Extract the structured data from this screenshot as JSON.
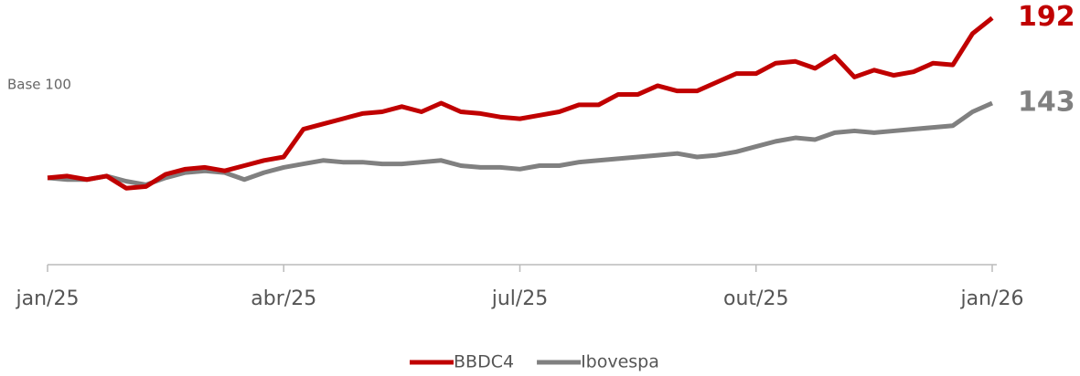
{
  "chart_data": {
    "type": "line",
    "ylabel": "Base 100",
    "x": [
      0,
      0.25,
      0.5,
      0.75,
      1,
      1.25,
      1.5,
      1.75,
      2,
      2.25,
      2.5,
      2.75,
      3,
      3.25,
      3.5,
      3.75,
      4,
      4.25,
      4.5,
      4.75,
      5,
      5.25,
      5.5,
      5.75,
      6,
      6.25,
      6.5,
      6.75,
      7,
      7.25,
      7.5,
      7.75,
      8,
      8.25,
      8.5,
      8.75,
      9,
      9.25,
      9.5,
      9.75,
      10,
      10.25,
      10.5,
      10.75,
      11,
      11.25,
      11.5,
      11.75,
      12
    ],
    "xlim": [
      0,
      12
    ],
    "xticks": [
      {
        "value": 0,
        "label": "jan/25"
      },
      {
        "value": 3,
        "label": "abr/25"
      },
      {
        "value": 6,
        "label": "jul/25"
      },
      {
        "value": 9,
        "label": "out/25"
      },
      {
        "value": 12,
        "label": "jan/26"
      }
    ],
    "ylim": [
      50,
      195
    ],
    "series": [
      {
        "name": "BBDC4",
        "color": "#c00000",
        "values": [
          100,
          101,
          99,
          101,
          94,
          95,
          102,
          105,
          106,
          104,
          107,
          110,
          112,
          128,
          131,
          134,
          137,
          138,
          141,
          138,
          143,
          138,
          137,
          135,
          134,
          136,
          138,
          142,
          142,
          148,
          148,
          153,
          150,
          150,
          155,
          160,
          160,
          166,
          167,
          163,
          170,
          158,
          162,
          159,
          161,
          166,
          165,
          183,
          192
        ]
      },
      {
        "name": "Ibovespa",
        "color": "#808080",
        "values": [
          100,
          99,
          99,
          101,
          98,
          96,
          100,
          103,
          104,
          103,
          99,
          103,
          106,
          108,
          110,
          109,
          109,
          108,
          108,
          109,
          110,
          107,
          106,
          106,
          105,
          107,
          107,
          109,
          110,
          111,
          112,
          113,
          114,
          112,
          113,
          115,
          118,
          121,
          123,
          122,
          126,
          127,
          126,
          127,
          128,
          129,
          130,
          138,
          143
        ]
      }
    ],
    "legend": "bottom"
  }
}
